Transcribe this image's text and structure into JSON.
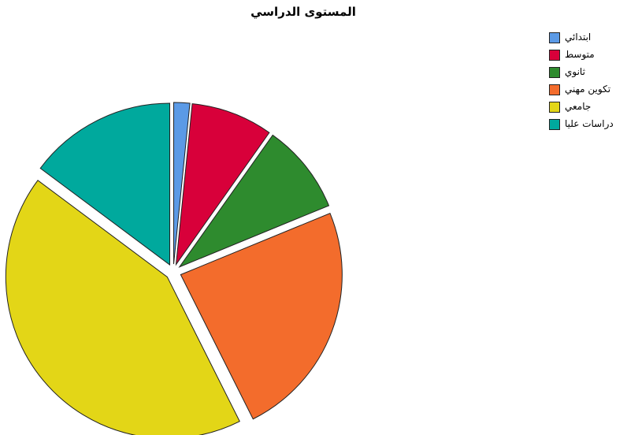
{
  "chart_data": {
    "type": "pie",
    "title": "المستوى الدراسي",
    "categories": [
      "ابتدائي",
      "متوسط",
      "ثانوي",
      "تكوين مهني",
      "جامعي",
      "دراسات عليا"
    ],
    "values": [
      1.6,
      8.2,
      9.0,
      23.8,
      42.6,
      14.8
    ],
    "colors": [
      "#5b9ae6",
      "#d8003a",
      "#2e8b2e",
      "#f36c2c",
      "#e3d617",
      "#00a99d"
    ],
    "exploded": true,
    "legend_position": "top-right",
    "grid": false
  }
}
